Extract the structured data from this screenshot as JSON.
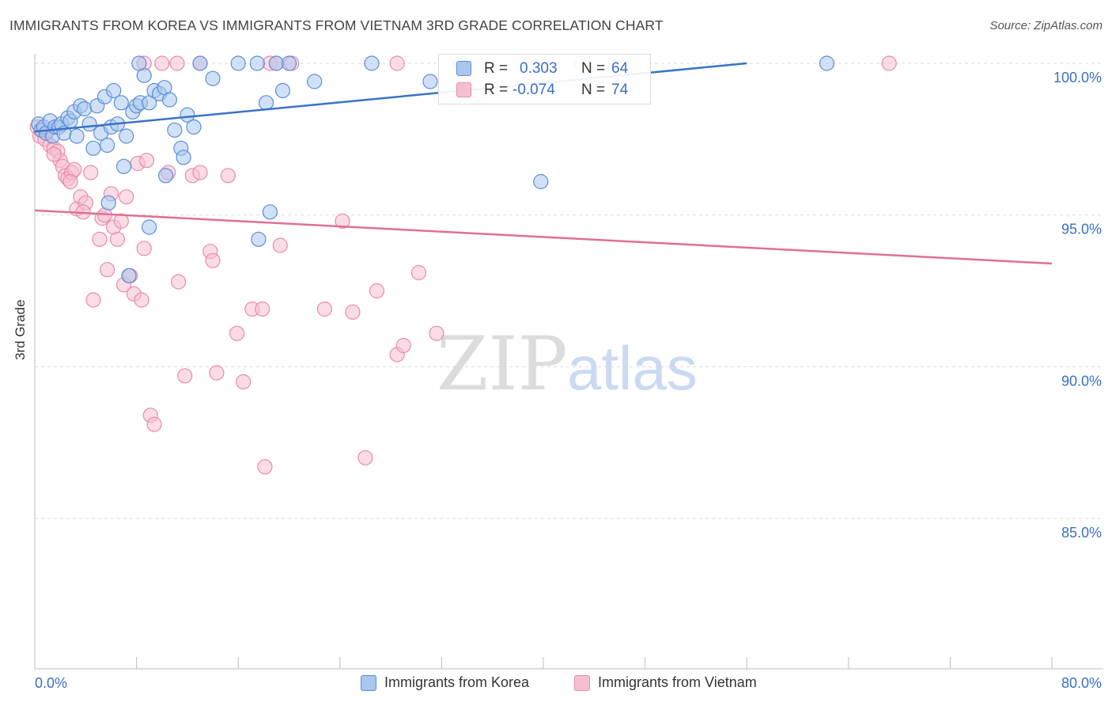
{
  "header": {
    "title": "IMMIGRANTS FROM KOREA VS IMMIGRANTS FROM VIETNAM 3RD GRADE CORRELATION CHART",
    "source": "Source: ZipAtlas.com"
  },
  "watermark": {
    "part1": "ZIP",
    "part2": "atlas"
  },
  "stats": {
    "korea": {
      "r_label": "R =",
      "r_value": "0.303",
      "n_label": "N =",
      "n_value": "64"
    },
    "vietnam": {
      "r_label": "R =",
      "r_value": "-0.074",
      "n_label": "N =",
      "n_value": "74"
    }
  },
  "colors": {
    "korea_fill": "#a9c6ee",
    "korea_stroke": "#5b8fd6",
    "korea_line": "#3a72c8",
    "vietnam_fill": "#f6bfd1",
    "vietnam_stroke": "#e98aa9",
    "vietnam_line": "#e06f97",
    "tick_label": "#3b6fc5",
    "grid": "#d9d9d9"
  },
  "chart_data": {
    "type": "scatter",
    "title": "IMMIGRANTS FROM KOREA VS IMMIGRANTS FROM VIETNAM 3RD GRADE CORRELATION CHART",
    "xlabel": "",
    "ylabel": "3rd Grade",
    "xlim": [
      0,
      80
    ],
    "ylim": [
      80.5,
      100.8
    ],
    "x_tick_labels": [
      "0.0%",
      "80.0%"
    ],
    "y_ticks": [
      85,
      90,
      95,
      100
    ],
    "y_tick_labels": [
      "85.0%",
      "90.0%",
      "95.0%",
      "100.0%"
    ],
    "grid": "horizontal dashed",
    "legend_position": "bottom-center",
    "series": [
      {
        "name": "Immigrants from Korea",
        "color": "#a9c6ee",
        "trend": {
          "x": [
            0,
            56
          ],
          "y": [
            97.75,
            100.0
          ]
        },
        "points": [
          [
            0.3,
            98.0
          ],
          [
            0.5,
            97.8
          ],
          [
            0.7,
            97.9
          ],
          [
            0.9,
            97.7
          ],
          [
            1.2,
            98.1
          ],
          [
            1.4,
            97.6
          ],
          [
            1.6,
            97.9
          ],
          [
            1.9,
            97.9
          ],
          [
            2.1,
            98.0
          ],
          [
            2.3,
            97.7
          ],
          [
            2.6,
            98.2
          ],
          [
            2.8,
            98.1
          ],
          [
            3.1,
            98.4
          ],
          [
            3.3,
            97.6
          ],
          [
            3.6,
            98.6
          ],
          [
            3.9,
            98.5
          ],
          [
            4.3,
            98.0
          ],
          [
            4.6,
            97.2
          ],
          [
            4.9,
            98.6
          ],
          [
            5.2,
            97.7
          ],
          [
            5.5,
            98.9
          ],
          [
            5.7,
            97.3
          ],
          [
            6.0,
            97.9
          ],
          [
            6.2,
            99.1
          ],
          [
            6.5,
            98.0
          ],
          [
            6.8,
            98.7
          ],
          [
            7.0,
            96.6
          ],
          [
            7.2,
            97.6
          ],
          [
            7.7,
            98.4
          ],
          [
            8.0,
            98.6
          ],
          [
            8.3,
            98.7
          ],
          [
            8.6,
            99.6
          ],
          [
            9.0,
            98.7
          ],
          [
            9.4,
            99.1
          ],
          [
            9.8,
            99.0
          ],
          [
            10.2,
            99.2
          ],
          [
            10.6,
            98.8
          ],
          [
            11.0,
            97.8
          ],
          [
            11.5,
            97.2
          ],
          [
            12.0,
            98.3
          ],
          [
            12.5,
            97.9
          ],
          [
            13.0,
            100.0
          ],
          [
            14.0,
            99.5
          ],
          [
            16.0,
            100.0
          ],
          [
            17.5,
            100.0
          ],
          [
            19.0,
            100.0
          ],
          [
            20.0,
            100.0
          ],
          [
            22.0,
            99.4
          ],
          [
            8.2,
            100.0
          ],
          [
            7.4,
            93.0
          ],
          [
            10.3,
            96.3
          ],
          [
            11.7,
            96.9
          ],
          [
            5.8,
            95.4
          ],
          [
            9.0,
            94.6
          ],
          [
            17.6,
            94.2
          ],
          [
            18.5,
            95.1
          ],
          [
            19.5,
            99.1
          ],
          [
            18.2,
            98.7
          ],
          [
            31.1,
            99.4
          ],
          [
            39.8,
            96.1
          ],
          [
            39.0,
            100.0
          ],
          [
            33.5,
            100.0
          ],
          [
            26.5,
            100.0
          ],
          [
            62.3,
            100.0
          ]
        ]
      },
      {
        "name": "Immigrants from Vietnam",
        "color": "#f6bfd1",
        "trend": {
          "x": [
            0,
            80
          ],
          "y": [
            95.15,
            93.4
          ]
        },
        "points": [
          [
            0.2,
            97.9
          ],
          [
            0.4,
            97.6
          ],
          [
            0.6,
            97.8
          ],
          [
            0.8,
            97.5
          ],
          [
            1.0,
            97.8
          ],
          [
            1.2,
            97.3
          ],
          [
            1.5,
            97.2
          ],
          [
            1.8,
            97.1
          ],
          [
            2.0,
            96.8
          ],
          [
            2.2,
            96.6
          ],
          [
            2.4,
            96.3
          ],
          [
            2.6,
            96.2
          ],
          [
            2.9,
            96.4
          ],
          [
            3.1,
            96.5
          ],
          [
            3.3,
            95.2
          ],
          [
            3.6,
            95.6
          ],
          [
            4.0,
            95.4
          ],
          [
            4.4,
            96.4
          ],
          [
            4.6,
            92.2
          ],
          [
            5.1,
            94.2
          ],
          [
            5.3,
            94.9
          ],
          [
            5.5,
            95.0
          ],
          [
            5.7,
            93.2
          ],
          [
            6.0,
            95.7
          ],
          [
            6.2,
            94.6
          ],
          [
            6.5,
            94.2
          ],
          [
            6.8,
            94.8
          ],
          [
            7.0,
            92.7
          ],
          [
            7.2,
            95.6
          ],
          [
            7.5,
            93.0
          ],
          [
            7.8,
            92.4
          ],
          [
            8.1,
            96.7
          ],
          [
            8.4,
            92.2
          ],
          [
            8.6,
            93.9
          ],
          [
            8.8,
            96.8
          ],
          [
            9.1,
            88.4
          ],
          [
            9.4,
            88.1
          ],
          [
            10.0,
            100.0
          ],
          [
            10.5,
            96.4
          ],
          [
            11.3,
            92.8
          ],
          [
            11.8,
            89.7
          ],
          [
            12.4,
            96.3
          ],
          [
            13.0,
            96.4
          ],
          [
            13.8,
            93.8
          ],
          [
            14.0,
            93.5
          ],
          [
            14.3,
            89.8
          ],
          [
            15.2,
            96.3
          ],
          [
            15.9,
            91.1
          ],
          [
            16.4,
            89.5
          ],
          [
            17.1,
            91.9
          ],
          [
            17.9,
            91.9
          ],
          [
            18.1,
            86.7
          ],
          [
            19.3,
            94.0
          ],
          [
            20.2,
            100.0
          ],
          [
            22.8,
            91.9
          ],
          [
            24.2,
            94.8
          ],
          [
            25.0,
            91.8
          ],
          [
            26.0,
            87.0
          ],
          [
            26.9,
            92.5
          ],
          [
            28.5,
            90.4
          ],
          [
            29.0,
            90.7
          ],
          [
            30.2,
            93.1
          ],
          [
            31.6,
            91.1
          ],
          [
            8.6,
            100.0
          ],
          [
            11.2,
            100.0
          ],
          [
            13.0,
            100.0
          ],
          [
            18.5,
            100.0
          ],
          [
            19.0,
            100.0
          ],
          [
            28.5,
            100.0
          ],
          [
            43.0,
            100.0
          ],
          [
            67.2,
            100.0
          ],
          [
            1.5,
            97.0
          ],
          [
            2.8,
            96.1
          ],
          [
            3.8,
            95.1
          ]
        ]
      }
    ]
  },
  "legend": {
    "items": [
      {
        "label": "Immigrants from Korea"
      },
      {
        "label": "Immigrants from Vietnam"
      }
    ]
  },
  "axis_labels": {
    "x_left": "0.0%",
    "x_right": "80.0%"
  }
}
